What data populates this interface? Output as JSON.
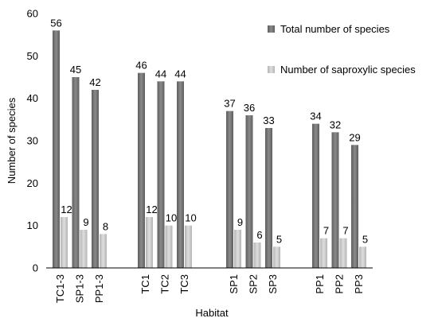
{
  "chart_data": {
    "type": "bar",
    "categories": [
      "TC1-3",
      "SP1-3",
      "PP1-3",
      "TC1",
      "TC2",
      "TC3",
      "SP1",
      "SP2",
      "SP3",
      "PP1",
      "PP2",
      "PP3"
    ],
    "category_groups": [
      [
        0,
        1,
        2
      ],
      [
        3,
        4,
        5
      ],
      [
        6,
        7,
        8
      ],
      [
        9,
        10,
        11
      ]
    ],
    "series": [
      {
        "name": "Total number of species",
        "values": [
          56,
          45,
          42,
          46,
          44,
          44,
          37,
          36,
          33,
          34,
          32,
          29
        ],
        "color": "#7a7a7a"
      },
      {
        "name": "Number of saproxylic species",
        "values": [
          12,
          9,
          8,
          12,
          10,
          10,
          9,
          6,
          5,
          7,
          7,
          5
        ],
        "color": "#c9c9c9"
      }
    ],
    "xlabel": "Habitat",
    "ylabel": "Number of species",
    "ylim": [
      0,
      60
    ],
    "yticks": [
      0,
      10,
      20,
      30,
      40,
      50,
      60
    ],
    "grid": false,
    "legend_position": "right"
  }
}
